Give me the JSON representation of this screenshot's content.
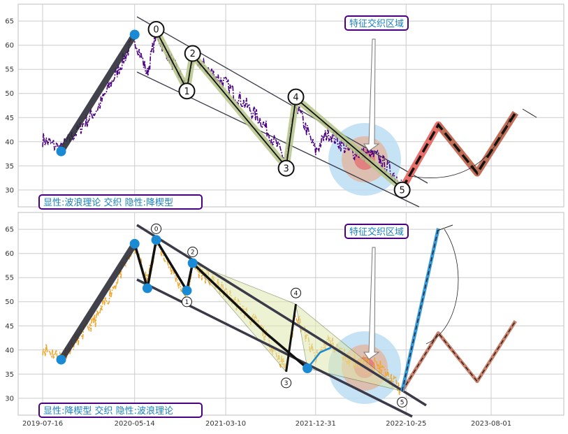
{
  "chart_data": [
    {
      "type": "line",
      "panel": "top",
      "ylim": [
        26.5,
        68.5
      ],
      "yticks": [
        30,
        35,
        40,
        45,
        50,
        55,
        60,
        65
      ],
      "grid": true,
      "colors": {
        "price": "#4b0082",
        "impulse": "#2e2e38",
        "wave_glow": "#b5c48a",
        "forecast_glow": "#e8706a",
        "forecast_line": "#111111",
        "forecast_alt": "#b56f52",
        "marker": "#1a8ad4",
        "label_text": "#1a7fbf",
        "label_border": "#4b0082"
      },
      "wave_points": [
        {
          "label": "0",
          "date": "2020-07-24",
          "value": 63.0
        },
        {
          "label": "1",
          "date": "2020-11-02",
          "value": 50.8
        },
        {
          "label": "2",
          "date": "2020-11-21",
          "value": 58.0
        },
        {
          "label": "3",
          "date": "2021-09-25",
          "value": 34.8
        },
        {
          "label": "4",
          "date": "2021-10-27",
          "value": 49.0
        },
        {
          "label": "5",
          "date": "2022-10-12",
          "value": 30.3
        }
      ],
      "impulse": [
        {
          "date": "2019-09-15",
          "value": 38.0
        },
        {
          "date": "2020-05-14",
          "value": 62.2
        }
      ],
      "forecast": [
        {
          "date": "2022-10-12",
          "value": 30.3
        },
        {
          "date": "2023-02-08",
          "value": 43.5
        },
        {
          "date": "2023-06-16",
          "value": 33.5
        },
        {
          "date": "2023-10-20",
          "value": 46.0
        }
      ],
      "annotation": "特征交织区域",
      "corner_label": "显性:波浪理论 交织 隐性:降楔型"
    },
    {
      "type": "line",
      "panel": "bottom",
      "ylim": [
        26.5,
        68.5
      ],
      "yticks": [
        30,
        35,
        40,
        45,
        50,
        55,
        60,
        65
      ],
      "xticks": [
        "2019-07-16",
        "2020-05-14",
        "2021-03-10",
        "2021-12-31",
        "2022-10-25",
        "2023-08-01"
      ],
      "grid": true,
      "colors": {
        "price": "#f0a830",
        "wedge_line": "#3a3a48",
        "path": "#111111",
        "forecast_blue": "#3a9ad8",
        "forecast_alt": "#c8806a",
        "marker": "#1a8ad4",
        "wave_fill": "#e0e8b0"
      },
      "markers": [
        {
          "date": "2019-09-15",
          "value": 38.0
        },
        {
          "date": "2020-05-14",
          "value": 62.0
        },
        {
          "date": "2020-06-25",
          "value": 52.8
        },
        {
          "date": "2020-07-24",
          "value": 62.8
        },
        {
          "date": "2020-11-02",
          "value": 52.3
        },
        {
          "date": "2020-11-21",
          "value": 58.0
        },
        {
          "date": "2021-12-04",
          "value": 36.2
        }
      ],
      "wave_labels": [
        {
          "label": "0",
          "date": "2020-07-24",
          "value": 62.8
        },
        {
          "label": "1",
          "date": "2020-11-02",
          "value": 52.3
        },
        {
          "label": "2",
          "date": "2020-11-21",
          "value": 58.0
        },
        {
          "label": "3",
          "date": "2021-09-25",
          "value": 35.5
        },
        {
          "label": "4",
          "date": "2021-10-27",
          "value": 49.5
        },
        {
          "label": "5",
          "date": "2022-10-12",
          "value": 31.5
        }
      ],
      "forecast_blue": [
        {
          "date": "2022-10-12",
          "value": 31.5
        },
        {
          "date": "2023-02-08",
          "value": 65.2
        }
      ],
      "forecast_alt": [
        {
          "date": "2022-10-12",
          "value": 31.5
        },
        {
          "date": "2023-02-08",
          "value": 43.5
        },
        {
          "date": "2023-06-16",
          "value": 33.5
        },
        {
          "date": "2023-10-20",
          "value": 46.0
        }
      ],
      "annotation": "特征交织区域",
      "corner_label": "显性:降楔型 交织 隐性:波浪理论"
    }
  ]
}
